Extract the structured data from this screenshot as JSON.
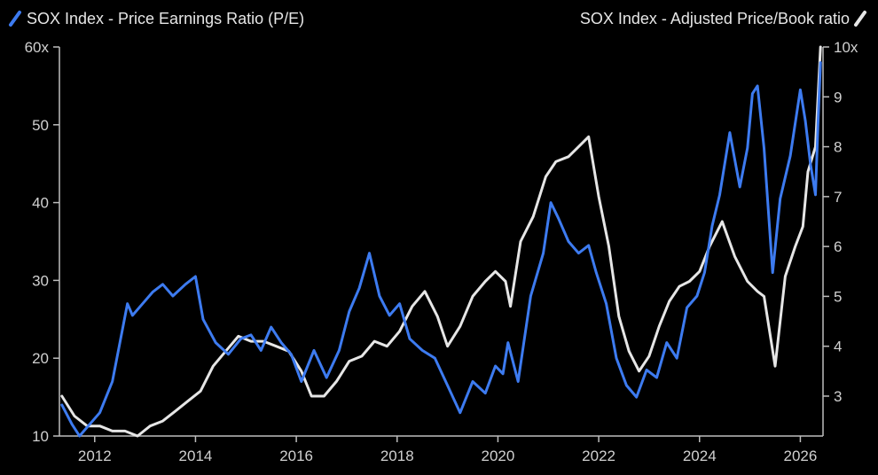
{
  "chart_data": {
    "type": "line",
    "legend_position": "top",
    "grid": false,
    "colors": {
      "pe": "#3d7bf0",
      "pb": "#e6e6e6",
      "background": "#000000"
    },
    "legend": {
      "left": "SOX Index - Price Earnings Ratio (P/E)",
      "right": "SOX Index - Adjusted Price/Book ratio"
    },
    "x_axis": {
      "range": [
        2011.3,
        2026.45
      ],
      "ticks": [
        "2012",
        "2014",
        "2016",
        "2018",
        "2020",
        "2022",
        "2024",
        "2026"
      ]
    },
    "y_left": {
      "range": [
        10,
        60
      ],
      "ticks": [
        {
          "value": 10,
          "label": "10"
        },
        {
          "value": 20,
          "label": "20"
        },
        {
          "value": 30,
          "label": "30"
        },
        {
          "value": 40,
          "label": "40"
        },
        {
          "value": 50,
          "label": "50"
        },
        {
          "value": 60,
          "label": "60x"
        }
      ]
    },
    "y_right": {
      "range": [
        2.2,
        10
      ],
      "ticks": [
        {
          "value": 3,
          "label": "3"
        },
        {
          "value": 4,
          "label": "4"
        },
        {
          "value": 5,
          "label": "5"
        },
        {
          "value": 6,
          "label": "6"
        },
        {
          "value": 7,
          "label": "7"
        },
        {
          "value": 8,
          "label": "8"
        },
        {
          "value": 9,
          "label": "9"
        },
        {
          "value": 10,
          "label": "10x"
        }
      ]
    },
    "series": [
      {
        "name": "SOX Index - Price Earnings Ratio (P/E)",
        "axis": "left",
        "x": [
          2011.35,
          2011.55,
          2011.7,
          2011.9,
          2012.1,
          2012.35,
          2012.5,
          2012.65,
          2012.75,
          2012.95,
          2013.15,
          2013.35,
          2013.55,
          2013.8,
          2014.0,
          2014.15,
          2014.4,
          2014.65,
          2014.9,
          2015.1,
          2015.3,
          2015.5,
          2015.7,
          2015.9,
          2016.1,
          2016.35,
          2016.6,
          2016.85,
          2017.05,
          2017.25,
          2017.45,
          2017.65,
          2017.85,
          2018.05,
          2018.25,
          2018.5,
          2018.75,
          2019.0,
          2019.25,
          2019.5,
          2019.75,
          2019.95,
          2020.1,
          2020.2,
          2020.4,
          2020.65,
          2020.9,
          2021.05,
          2021.2,
          2021.4,
          2021.6,
          2021.8,
          2021.95,
          2022.15,
          2022.35,
          2022.55,
          2022.75,
          2022.95,
          2023.15,
          2023.35,
          2023.55,
          2023.75,
          2023.95,
          2024.1,
          2024.25,
          2024.4,
          2024.6,
          2024.8,
          2024.95,
          2025.05,
          2025.15,
          2025.28,
          2025.45,
          2025.6,
          2025.8,
          2026.0,
          2026.1,
          2026.2,
          2026.3,
          2026.35,
          2026.4
        ],
        "values": [
          14.0,
          11.5,
          10.0,
          11.5,
          13.0,
          17.0,
          22.0,
          27.0,
          25.5,
          27.0,
          28.5,
          29.5,
          28.0,
          29.5,
          30.5,
          25.0,
          22.0,
          20.5,
          22.5,
          23.0,
          21.0,
          24.0,
          22.0,
          20.5,
          17.0,
          21.0,
          17.5,
          21.0,
          26.0,
          29.0,
          33.5,
          28.0,
          25.5,
          27.0,
          22.5,
          21.0,
          20.0,
          16.5,
          13.0,
          17.0,
          15.5,
          19.0,
          18.0,
          22.0,
          17.0,
          28.0,
          33.5,
          40.0,
          38.0,
          35.0,
          33.5,
          34.5,
          31.0,
          27.0,
          20.0,
          16.5,
          15.0,
          18.5,
          17.5,
          22.0,
          20.0,
          26.5,
          28.0,
          31.0,
          37.0,
          41.0,
          49.0,
          42.0,
          47.0,
          54.0,
          55.0,
          47.0,
          31.0,
          40.5,
          46.0,
          54.5,
          50.5,
          45.0,
          41.0,
          50.0,
          58.0
        ]
      },
      {
        "name": "SOX Index - Adjusted Price/Book ratio",
        "axis": "right",
        "x": [
          2011.35,
          2011.6,
          2011.85,
          2012.1,
          2012.35,
          2012.6,
          2012.85,
          2013.1,
          2013.35,
          2013.6,
          2013.85,
          2014.1,
          2014.35,
          2014.6,
          2014.85,
          2015.1,
          2015.35,
          2015.6,
          2015.85,
          2016.1,
          2016.3,
          2016.55,
          2016.8,
          2017.05,
          2017.3,
          2017.55,
          2017.8,
          2018.05,
          2018.3,
          2018.55,
          2018.8,
          2019.0,
          2019.25,
          2019.5,
          2019.75,
          2019.95,
          2020.15,
          2020.25,
          2020.45,
          2020.7,
          2020.95,
          2021.15,
          2021.4,
          2021.6,
          2021.8,
          2022.0,
          2022.2,
          2022.4,
          2022.6,
          2022.8,
          2023.0,
          2023.2,
          2023.4,
          2023.6,
          2023.8,
          2024.0,
          2024.2,
          2024.45,
          2024.7,
          2024.95,
          2025.15,
          2025.28,
          2025.5,
          2025.7,
          2025.9,
          2026.05,
          2026.15,
          2026.3,
          2026.4
        ],
        "values": [
          3.0,
          2.6,
          2.4,
          2.4,
          2.3,
          2.3,
          2.2,
          2.4,
          2.5,
          2.7,
          2.9,
          3.1,
          3.6,
          3.9,
          4.2,
          4.1,
          4.1,
          4.0,
          3.9,
          3.5,
          3.0,
          3.0,
          3.3,
          3.7,
          3.8,
          4.1,
          4.0,
          4.3,
          4.8,
          5.1,
          4.6,
          4.0,
          4.4,
          5.0,
          5.3,
          5.5,
          5.3,
          4.8,
          6.1,
          6.6,
          7.4,
          7.7,
          7.8,
          8.0,
          8.2,
          7.0,
          6.0,
          4.6,
          3.9,
          3.5,
          3.8,
          4.4,
          4.9,
          5.2,
          5.3,
          5.5,
          6.0,
          6.5,
          5.8,
          5.3,
          5.1,
          5.0,
          3.6,
          5.4,
          6.0,
          6.4,
          7.5,
          8.0,
          10.0
        ]
      }
    ]
  }
}
